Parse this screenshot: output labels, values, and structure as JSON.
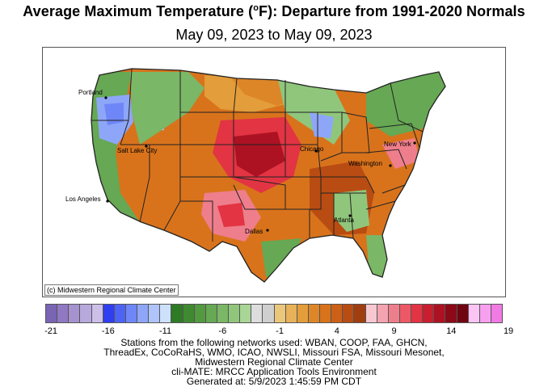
{
  "title_main": "Average Maximum Temperature (",
  "title_unit_sup": "o",
  "title_rest": "F): Departure from 1991-2020 Normals",
  "subtitle": "May 09, 2023 to May 09, 2023",
  "credit": "(c) Midwestern Regional Climate Center",
  "cities": [
    "Portland",
    "Salt Lake City",
    "Los Angeles",
    "Dallas",
    "Chicago",
    "New York",
    "Washington",
    "Atlanta"
  ],
  "legend": {
    "colors": [
      "#7a64b4",
      "#9079c2",
      "#a592cf",
      "#b8a9dc",
      "#ccc0e8",
      "#2e3ef0",
      "#4d63f5",
      "#6e86f7",
      "#8ea6f8",
      "#aec4fa",
      "#cde0fc",
      "#2f7a24",
      "#3f8a30",
      "#52993f",
      "#66a853",
      "#7ab766",
      "#90c67b",
      "#a9d596",
      "#dddddd",
      "#cfcfcf",
      "#ebc77c",
      "#e7b25a",
      "#e39d3a",
      "#dd8628",
      "#d8731c",
      "#cc6016",
      "#b94c12",
      "#a03e10",
      "#f8c8d0",
      "#f4a4b0",
      "#ef7e8c",
      "#ec5866",
      "#e23443",
      "#c81e2e",
      "#ac1222",
      "#8c0a17",
      "#6e0510",
      "#fbc4f4",
      "#f7a0ee",
      "#f27ae4"
    ],
    "tick_labels": [
      "-21",
      "-16",
      "-11",
      "-6",
      "-1",
      "4",
      "9",
      "14",
      "19"
    ]
  },
  "footer_lines": [
    "Stations from the following networks used: WBAN, COOP, FAA, GHCN,",
    "ThreadEx, CoCoRaHS, WMO, ICAO, NWSLI, Missouri FSA, Missouri Mesonet,",
    "Midwestern Regional Climate Center",
    "cli-MATE: MRCC Application Tools Environment",
    "Generated at: 5/9/2023 1:45:59 PM CDT"
  ]
}
